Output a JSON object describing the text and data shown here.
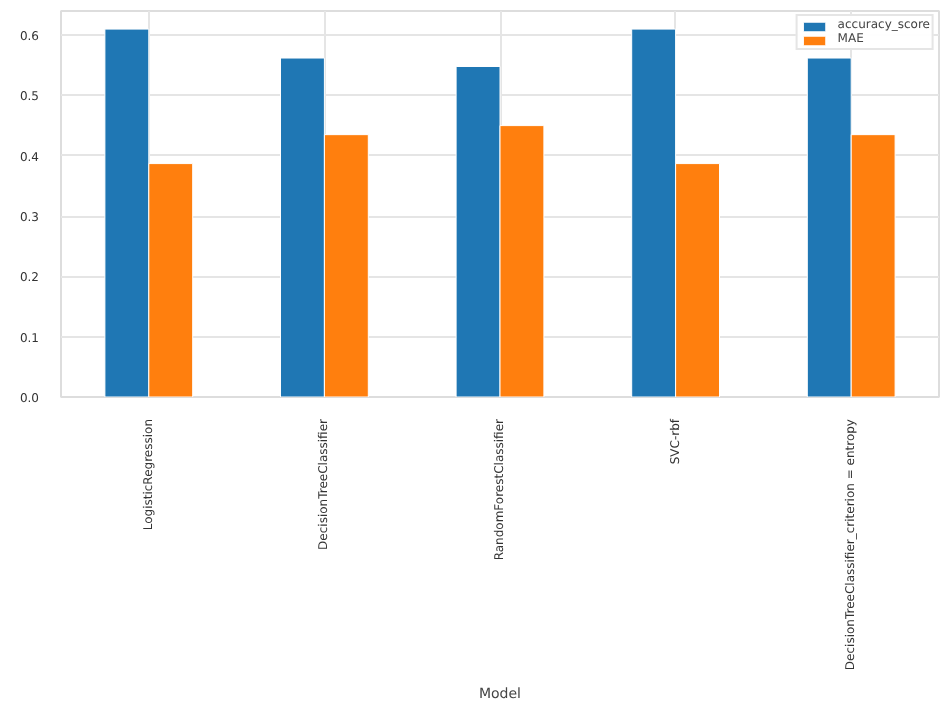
{
  "chart_data": {
    "type": "bar",
    "xlabel": "Model",
    "categories": [
      "LogisticRegression",
      "DecisionTreeClassifier",
      "RandomForestClassifier",
      "SVC-rbf",
      "DecisionTreeClassifier_criterion = entropy"
    ],
    "series": [
      {
        "name": "accuracy_score",
        "color": "#1f77b4",
        "values": [
          0.61,
          0.562,
          0.548,
          0.61,
          0.562
        ]
      },
      {
        "name": "MAE",
        "color": "#ff7f0e",
        "values": [
          0.387,
          0.435,
          0.45,
          0.387,
          0.435
        ]
      }
    ],
    "ylim": [
      0,
      0.64
    ],
    "yticks": [
      {
        "value": 0,
        "label": "0.0"
      },
      0.1,
      0.2,
      0.3,
      0.4,
      0.5,
      0.6
    ],
    "grid": true,
    "legend": "top right"
  }
}
